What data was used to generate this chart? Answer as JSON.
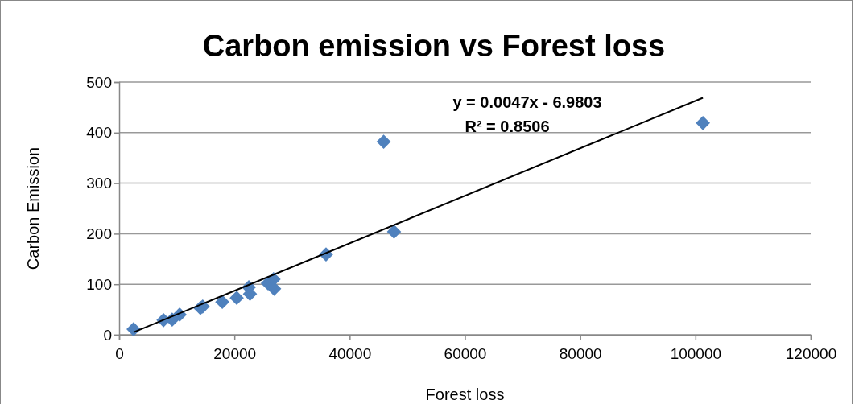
{
  "chart_data": {
    "type": "scatter",
    "title": "Carbon emission vs Forest loss",
    "xlabel": "Forest loss",
    "ylabel": "Carbon Emission",
    "xlim": [
      0,
      120000
    ],
    "xticks": [
      0,
      20000,
      40000,
      60000,
      80000,
      100000,
      120000
    ],
    "ylim": [
      0,
      500
    ],
    "yticks": [
      0,
      100,
      200,
      300,
      400,
      500
    ],
    "grid": "y",
    "annotations": [
      "y = 0.0047x - 6.9803",
      "R² = 0.8506"
    ],
    "series": [
      {
        "marker": "diamond",
        "color": "#4f81bd",
        "x": [
          2500,
          7700,
          9200,
          10500,
          14100,
          14500,
          17900,
          20400,
          22500,
          22700,
          25800,
          26800,
          26900,
          35900,
          45900,
          47700,
          101300
        ],
        "values": [
          11,
          29,
          30,
          40,
          53,
          56,
          65,
          73,
          94,
          81,
          102,
          110,
          91,
          159,
          382,
          204,
          419
        ]
      },
      {
        "type": "line",
        "marker": "none",
        "color": "#000000",
        "x": [
          2500,
          101300
        ],
        "values": [
          5,
          469
        ]
      }
    ]
  }
}
